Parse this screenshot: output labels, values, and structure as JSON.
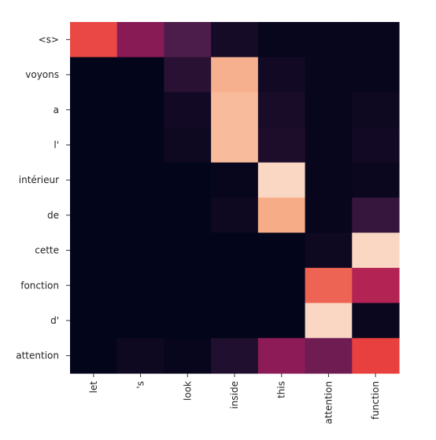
{
  "chart_data": {
    "type": "heatmap",
    "x_labels": [
      "let",
      "'s",
      "look",
      "inside",
      "this",
      "attention",
      "function"
    ],
    "y_labels": [
      "<s>",
      "voyons",
      "a",
      "l'",
      "intérieur",
      "de",
      "cette",
      "fonction",
      "d'",
      "attention"
    ],
    "values": [
      [
        0.62,
        0.34,
        0.2,
        0.05,
        0.01,
        0.01,
        0.01
      ],
      [
        0.0,
        0.0,
        0.1,
        0.85,
        0.04,
        0.01,
        0.01
      ],
      [
        0.0,
        0.0,
        0.04,
        0.88,
        0.06,
        0.01,
        0.03
      ],
      [
        0.0,
        0.0,
        0.03,
        0.88,
        0.07,
        0.01,
        0.04
      ],
      [
        0.0,
        0.0,
        0.0,
        0.01,
        0.95,
        0.01,
        0.02
      ],
      [
        0.0,
        0.0,
        0.0,
        0.03,
        0.84,
        0.01,
        0.14
      ],
      [
        0.0,
        0.0,
        0.0,
        0.0,
        0.0,
        0.03,
        0.95
      ],
      [
        0.0,
        0.0,
        0.0,
        0.0,
        0.0,
        0.68,
        0.45
      ],
      [
        0.0,
        0.0,
        0.0,
        0.0,
        0.0,
        0.95,
        0.02
      ],
      [
        0.0,
        0.03,
        0.01,
        0.08,
        0.35,
        0.28,
        0.6
      ]
    ],
    "colormap": [
      "#03051a",
      "#4c1d4b",
      "#a11a5b",
      "#e83f3f",
      "#f69c73",
      "#faebdd"
    ],
    "value_range": [
      0,
      1
    ],
    "title": "",
    "xlabel": "",
    "ylabel": ""
  }
}
